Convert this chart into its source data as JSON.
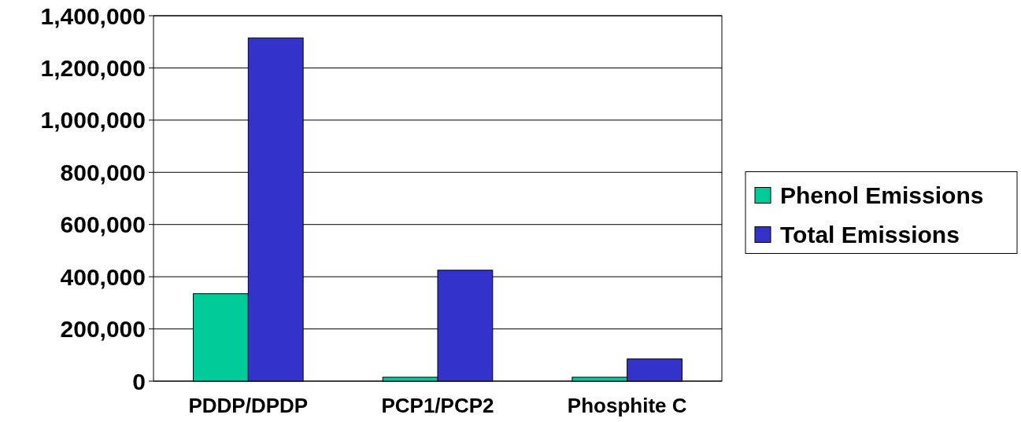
{
  "chart_data": {
    "type": "bar",
    "categories": [
      "PDDP/DPDP",
      "PCP1/PCP2",
      "Phosphite C"
    ],
    "series": [
      {
        "name": "Phenol Emissions",
        "color": "#00cc99",
        "values": [
          335000,
          15000,
          15000
        ]
      },
      {
        "name": "Total Emissions",
        "color": "#3333cc",
        "values": [
          1315000,
          425000,
          85000
        ]
      }
    ],
    "ylim": [
      0,
      1400000
    ],
    "yticks": [
      {
        "value": 0,
        "label": "0"
      },
      {
        "value": 200000,
        "label": "200,000"
      },
      {
        "value": 400000,
        "label": "400,000"
      },
      {
        "value": 600000,
        "label": "600,000"
      },
      {
        "value": 800000,
        "label": "800,000"
      },
      {
        "value": 1000000,
        "label": "1,000,000"
      },
      {
        "value": 1200000,
        "label": "1,200,000"
      },
      {
        "value": 1400000,
        "label": "1,400,000"
      }
    ],
    "grid": "y",
    "legend": "right"
  }
}
